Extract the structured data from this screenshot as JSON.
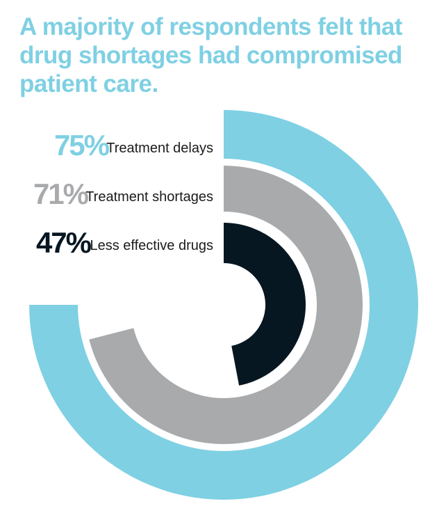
{
  "title": "A majority of respondents felt that drug shortages had compromised patient care.",
  "colors": {
    "title": "#7fd0e3",
    "background": "#ffffff"
  },
  "chart_data": {
    "type": "radial-bar",
    "max": 100,
    "start_angle_deg": 0,
    "direction": "clockwise",
    "series": [
      {
        "label": "Treatment delays",
        "value": 75,
        "value_label": "75%",
        "color": "#7fd0e3",
        "label_color": "#7fd0e3"
      },
      {
        "label": "Treatment shortages",
        "value": 71,
        "value_label": "71%",
        "color": "#a9aaac",
        "label_color": "#a9aaac"
      },
      {
        "label": "Less effective drugs",
        "value": 47,
        "value_label": "47%",
        "color": "#071722",
        "label_color": "#071722"
      }
    ]
  }
}
